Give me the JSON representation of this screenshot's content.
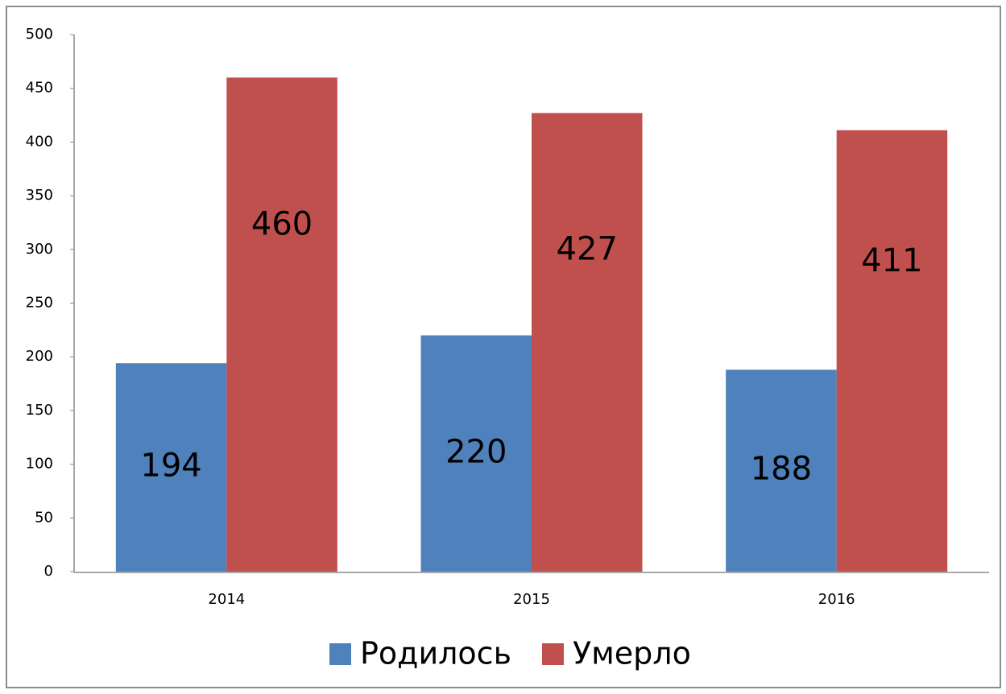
{
  "chart_data": {
    "type": "bar",
    "categories": [
      "2014",
      "2015",
      "2016"
    ],
    "series": [
      {
        "name": "Родилось",
        "color": "#4f81bd",
        "values": [
          194,
          220,
          188
        ]
      },
      {
        "name": "Умерло",
        "color": "#c0504d",
        "values": [
          460,
          427,
          411
        ]
      }
    ],
    "ylim": [
      0,
      500
    ],
    "yticks": [
      0,
      50,
      100,
      150,
      200,
      250,
      300,
      350,
      400,
      450,
      500
    ],
    "grid": false,
    "legend": "bottom"
  }
}
